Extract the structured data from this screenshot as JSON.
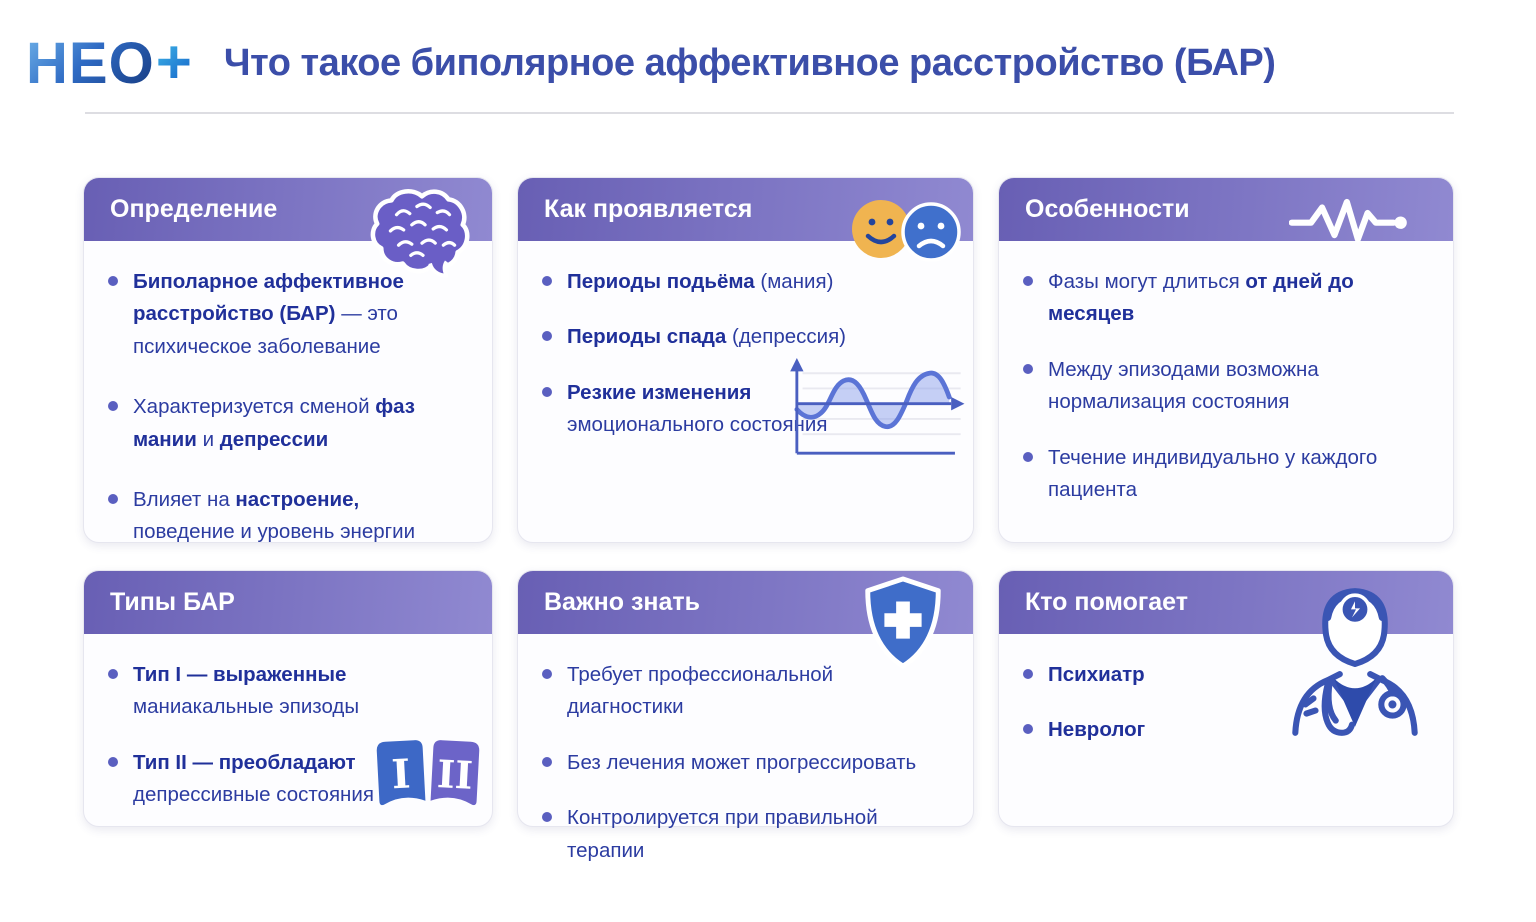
{
  "logo": {
    "text": "НЕО",
    "plus": "+"
  },
  "title": "Что такое биполярное аффективное расстройство (БАР)",
  "colors": {
    "header_gradient_start": "#685fb4",
    "header_gradient_end": "#9089d1",
    "title_blue": "#3b4ea9",
    "bullet_text_blue": "#2c3ca1",
    "smiley_yellow": "#f0b450",
    "sad_face_blue": "#4070cc",
    "shield_blue": "#3f6dc9",
    "badge_I_blue": "#3d68c6",
    "badge_II_purple": "#6c64c8"
  },
  "cards": [
    {
      "id": "definition",
      "title": "Определение",
      "icon": "brain-icon",
      "bullets": [
        {
          "segments": [
            {
              "text": "Биполарное аффективное расстройство (БАР)",
              "bold": true
            },
            {
              "text": " — это психическое заболевание",
              "bold": false
            }
          ]
        },
        {
          "segments": [
            {
              "text": "Характеризуется сменой ",
              "bold": false
            },
            {
              "text": "фаз мании",
              "bold": true
            },
            {
              "text": " и ",
              "bold": false
            },
            {
              "text": "депрессии",
              "bold": true
            }
          ]
        },
        {
          "segments": [
            {
              "text": "Влияет на ",
              "bold": false
            },
            {
              "text": "настроение,",
              "bold": true
            },
            {
              "text": " поведение и уровень энергии",
              "bold": false
            }
          ]
        }
      ]
    },
    {
      "id": "how-it-manifests",
      "title": "Как проявляется",
      "icon": "mood-faces-icon",
      "bullets": [
        {
          "segments": [
            {
              "text": "Периоды подьёма",
              "bold": true
            },
            {
              "text": " (мания)",
              "bold": false
            }
          ]
        },
        {
          "segments": [
            {
              "text": "Периоды спада",
              "bold": true
            },
            {
              "text": " (депрессия)",
              "bold": false
            }
          ]
        },
        {
          "segments": [
            {
              "text": "Резкие изменения",
              "bold": true
            },
            {
              "text": " эмоционального состояния",
              "bold": false
            }
          ]
        }
      ]
    },
    {
      "id": "features",
      "title": "Особенности",
      "icon": "pulse-icon",
      "bullets": [
        {
          "segments": [
            {
              "text": "Фазы могут длиться ",
              "bold": false
            },
            {
              "text": "от дней до месяцев",
              "bold": true
            }
          ]
        },
        {
          "segments": [
            {
              "text": "Между эпизодами возможна нормализация состояния",
              "bold": false
            }
          ]
        },
        {
          "segments": [
            {
              "text": "Течение индивидуально у каждого пациента",
              "bold": false
            }
          ]
        }
      ]
    },
    {
      "id": "types",
      "title": "Типы БАР",
      "icon": "type-badges-icon",
      "badges": [
        "I",
        "II"
      ],
      "bullets": [
        {
          "segments": [
            {
              "text": "Тип I — выраженные",
              "bold": true
            },
            {
              "text": " маниакальные эпизоды",
              "bold": false
            }
          ]
        },
        {
          "segments": [
            {
              "text": "Тип II — преобладают",
              "bold": true
            },
            {
              "text": " депрессивные состояния",
              "bold": false
            }
          ]
        }
      ]
    },
    {
      "id": "important",
      "title": "Важно знать",
      "icon": "shield-cross-icon",
      "bullets": [
        {
          "segments": [
            {
              "text": "Требует профессиональной диагностики",
              "bold": false
            }
          ]
        },
        {
          "segments": [
            {
              "text": "Без лечения может прогрессировать",
              "bold": false
            }
          ]
        },
        {
          "segments": [
            {
              "text": "Контролируется при правильной терапии",
              "bold": false
            }
          ]
        }
      ]
    },
    {
      "id": "who-helps",
      "title": "Кто помогает",
      "icon": "doctor-icon",
      "bullets": [
        {
          "segments": [
            {
              "text": "Психиатр",
              "bold": true
            }
          ]
        },
        {
          "segments": [
            {
              "text": "Невролог",
              "bold": true
            }
          ]
        }
      ]
    }
  ]
}
